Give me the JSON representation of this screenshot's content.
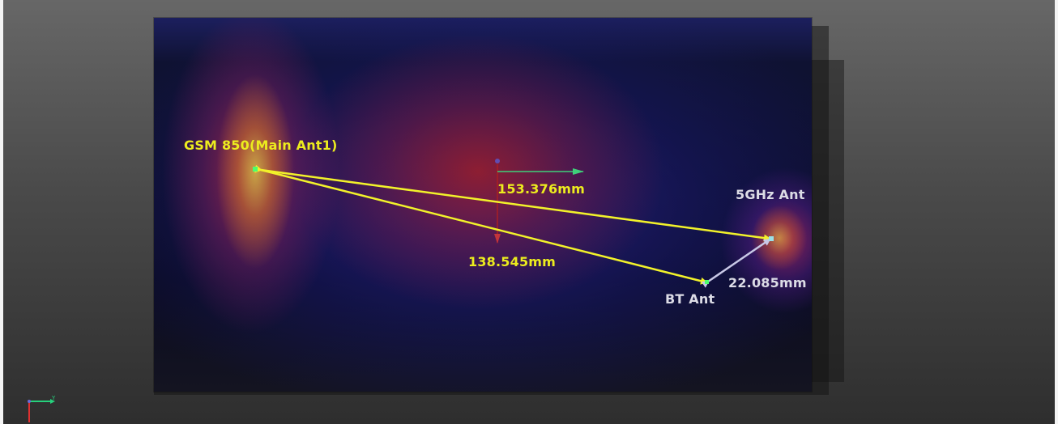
{
  "scene": {
    "labels": {
      "gsm_antenna": "GSM 850(Main Ant1)",
      "wifi_5ghz_antenna": "5GHz Ant",
      "bt_antenna": "BT Ant"
    },
    "measurements": {
      "gsm_to_5ghz": "153.376mm",
      "gsm_to_bt": "138.545mm",
      "bt_to_5ghz": "22.085mm"
    },
    "colors": {
      "measure_line": "#f2f22a",
      "measure_line_short": "#c8c8e6",
      "label_yellow": "#ecec1e",
      "label_white": "#dcdce6",
      "axis_x": "#26d07c",
      "axis_y": "#e03030",
      "marker": "#4cff6e"
    },
    "axis_icon": "xyz-triad-icon"
  }
}
